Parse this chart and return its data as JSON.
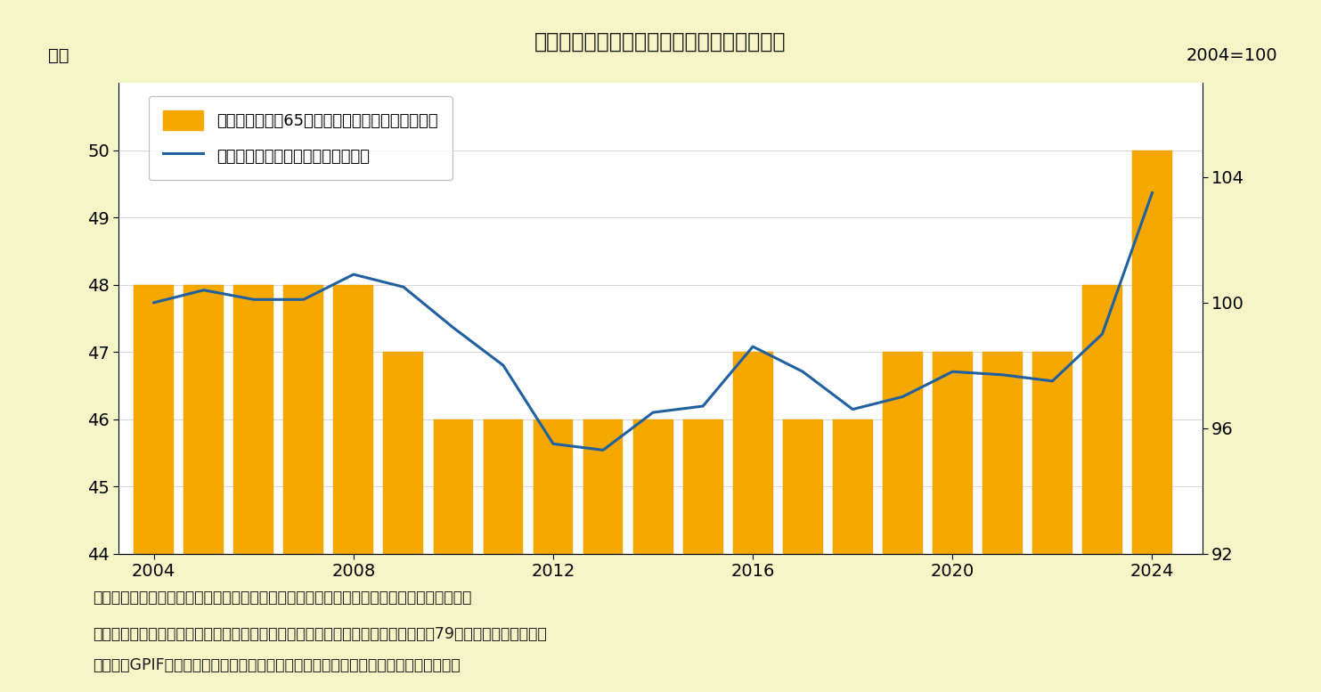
{
  "title": "図表２：在職老齢年金の減額判定基準の推移",
  "background_color": "#f5f5c8",
  "plot_bg_color": "#ffffff",
  "years": [
    2004,
    2005,
    2006,
    2007,
    2008,
    2009,
    2010,
    2011,
    2012,
    2013,
    2014,
    2015,
    2016,
    2017,
    2018,
    2019,
    2020,
    2021,
    2022,
    2023,
    2024
  ],
  "bar_values": [
    48,
    48,
    48,
    48,
    48,
    47,
    46,
    46,
    46,
    46,
    46,
    46,
    47,
    46,
    46,
    47,
    47,
    47,
    47,
    48,
    50
  ],
  "line_values": [
    100.0,
    100.4,
    100.1,
    100.1,
    100.9,
    100.5,
    99.2,
    98.0,
    95.5,
    95.3,
    96.5,
    96.7,
    98.6,
    97.8,
    96.6,
    97.0,
    97.8,
    97.7,
    97.5,
    99.0,
    103.5
  ],
  "bar_color": "#f5a800",
  "bar_edge_color": "#e09500",
  "line_color": "#2060a0",
  "left_ylim": [
    44,
    51
  ],
  "right_ylim": [
    92,
    107
  ],
  "left_yticks": [
    44,
    45,
    46,
    47,
    48,
    49,
    50
  ],
  "right_yticks": [
    92,
    96,
    100,
    104
  ],
  "left_ylabel": "万円",
  "right_ylabel": "2004=100",
  "legend1": "在職老齢年金（65歳以降）の減額基準（左目盛）",
  "legend2": "前年度の名目賃金の指数（右目盛）",
  "note1": "（注１）名目賃金の指数は、在職老齢年金に関する法律の規定に沿って筆者が試算した値。",
  "note2": "（資料）総務省「消費者物価指数」、厚生労働省「令和４年度　厚生年金保険法第79条の８第２項に基づく",
  "note3": "　　　　GPIFに係る管理積立金の管理及び運用の状況についての評価の結果」ほか。",
  "title_fontsize": 17,
  "label_fontsize": 14,
  "tick_fontsize": 14,
  "legend_fontsize": 13,
  "note_fontsize": 12.5
}
